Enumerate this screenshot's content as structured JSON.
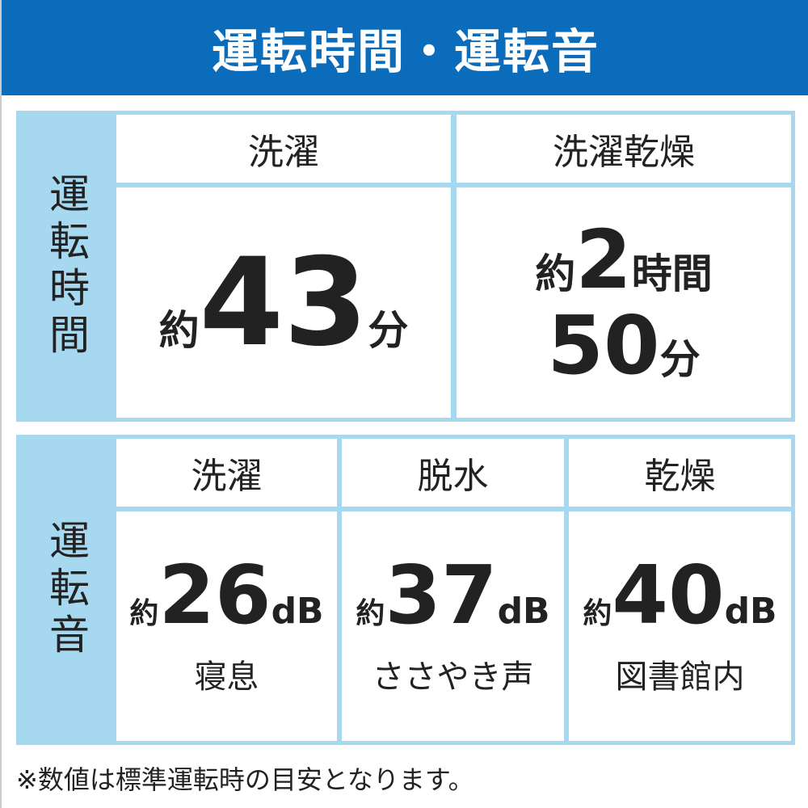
{
  "title": "運転時間・運転音",
  "time": {
    "label": "運転時間",
    "columns": [
      {
        "header": "洗濯",
        "prefix": "約",
        "value": "43",
        "unit": "分"
      },
      {
        "header": "洗濯乾燥",
        "prefix": "約",
        "value": "2",
        "unit": "時間",
        "value2": "50",
        "unit2": "分"
      }
    ]
  },
  "sound": {
    "label": "運転音",
    "columns": [
      {
        "header": "洗濯",
        "prefix": "約",
        "value": "26",
        "unit": "dB",
        "note": "寝息"
      },
      {
        "header": "脱水",
        "prefix": "約",
        "value": "37",
        "unit": "dB",
        "note": "ささやき声"
      },
      {
        "header": "乾燥",
        "prefix": "約",
        "value": "40",
        "unit": "dB",
        "note": "図書館内"
      }
    ]
  },
  "footer": "※数値は標準運転時の目安となります。",
  "colors": {
    "header": "#0a6cba",
    "label_bg": "#a6d8f0"
  }
}
